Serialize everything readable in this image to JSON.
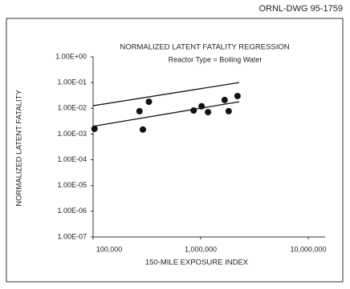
{
  "header": {
    "drawing_number": "ORNL-DWG 95-1759"
  },
  "chart_data": {
    "type": "scatter",
    "title": "NORMALIZED LATENT FATALITY REGRESSION",
    "subtitle": "Reactor Type = Boiling Water",
    "x_label": "150-MILE EXPOSURE INDEX",
    "y_label": "NORMALIZED LATENT FATALITY",
    "xscale": "log",
    "yscale": "log",
    "grid": false,
    "xlim": [
      100000,
      10000000
    ],
    "ylim": [
      1e-07,
      1
    ],
    "xticks": [
      {
        "value": 100000,
        "label": "100,000"
      },
      {
        "value": 1000000,
        "label": "1,000,000"
      },
      {
        "value": 10000000,
        "label": "10,000,000"
      }
    ],
    "yticks": [
      {
        "value": 1e-07,
        "label": "1.00E-07"
      },
      {
        "value": 1e-06,
        "label": "1.00E-06"
      },
      {
        "value": 1e-05,
        "label": "1.00E-05"
      },
      {
        "value": 0.0001,
        "label": "1.00E-04"
      },
      {
        "value": 0.001,
        "label": "1.00E-03"
      },
      {
        "value": 0.01,
        "label": "1.00E-02"
      },
      {
        "value": 0.1,
        "label": "1.00E-01"
      },
      {
        "value": 1,
        "label": "1.00E+00"
      }
    ],
    "series": [
      {
        "color": "#111",
        "x": [
          103000,
          270000,
          290000,
          330000,
          860000,
          1020000,
          1170000,
          1670000,
          1820000,
          2200000
        ],
        "values": [
          0.0016,
          0.0077,
          0.0015,
          0.018,
          0.0082,
          0.012,
          0.0071,
          0.021,
          0.0077,
          0.03
        ]
      }
    ],
    "fit_lines": [
      {
        "color": "#111",
        "x": [
          100000,
          2280000
        ],
        "values": [
          0.0126,
          0.1
        ]
      },
      {
        "color": "#111",
        "x": [
          100000,
          2280000
        ],
        "values": [
          0.002,
          0.018
        ]
      }
    ]
  }
}
